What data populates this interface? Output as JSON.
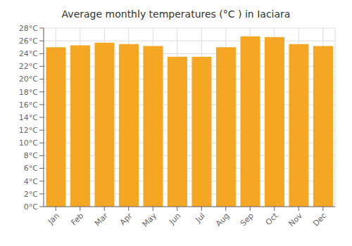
{
  "chart_data": {
    "type": "bar",
    "title": "Average monthly temperatures (°C ) in Iaciara",
    "categories": [
      "Jan",
      "Feb",
      "Mar",
      "Apr",
      "May",
      "Jun",
      "Jul",
      "Aug",
      "Sep",
      "Oct",
      "Nov",
      "Dec"
    ],
    "values": [
      25.0,
      25.3,
      25.7,
      25.5,
      25.2,
      23.5,
      23.5,
      25.0,
      26.7,
      26.6,
      25.5,
      25.2
    ],
    "color": "#F5A623",
    "ylim": [
      0,
      28
    ],
    "yticks": [
      {
        "value": 0,
        "label": "0°C"
      },
      {
        "value": 2,
        "label": "2°C"
      },
      {
        "value": 4,
        "label": "4°C"
      },
      {
        "value": 6,
        "label": "6°C"
      },
      {
        "value": 8,
        "label": "8°C"
      },
      {
        "value": 10,
        "label": "10°C"
      },
      {
        "value": 12,
        "label": "12°C"
      },
      {
        "value": 14,
        "label": "14°C"
      },
      {
        "value": 16,
        "label": "16°C"
      },
      {
        "value": 18,
        "label": "18°C"
      },
      {
        "value": 20,
        "label": "20°C"
      },
      {
        "value": 22,
        "label": "22°C"
      },
      {
        "value": 24,
        "label": "24°C"
      },
      {
        "value": 26,
        "label": "26°C"
      },
      {
        "value": 28,
        "label": "28°C"
      }
    ],
    "grid": true
  }
}
